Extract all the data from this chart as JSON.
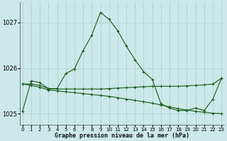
{
  "xlabel": "Graphe pression niveau de la mer (hPa)",
  "bg_color": "#cce8e8",
  "line_color": "#1a5c1a",
  "grid_color": "#aacece",
  "ylim": [
    1024.75,
    1027.45
  ],
  "xlim": [
    -0.3,
    23.3
  ],
  "yticks": [
    1025,
    1026,
    1027
  ],
  "xticks": [
    0,
    1,
    2,
    3,
    4,
    5,
    6,
    7,
    8,
    9,
    10,
    11,
    12,
    13,
    14,
    15,
    16,
    17,
    18,
    19,
    20,
    21,
    22,
    23
  ],
  "series": [
    {
      "x": [
        0,
        1,
        2,
        3,
        4,
        5,
        6,
        7,
        8,
        9,
        10,
        11,
        12,
        13,
        14,
        15,
        16,
        17,
        18,
        19,
        20,
        21,
        22,
        23
      ],
      "y": [
        1025.05,
        1025.72,
        1025.68,
        1025.55,
        1025.55,
        1025.88,
        1025.98,
        1026.38,
        1026.72,
        1027.22,
        1027.07,
        1026.82,
        1026.48,
        1026.18,
        1025.92,
        1025.75,
        1025.22,
        1025.12,
        1025.07,
        1025.07,
        1025.12,
        1025.07,
        1025.32,
        1025.78
      ]
    },
    {
      "x": [
        0,
        1,
        2,
        3,
        4,
        5,
        6,
        7,
        8,
        9,
        10,
        11,
        12,
        13,
        14,
        15,
        16,
        17,
        18,
        19,
        20,
        21,
        22,
        23
      ],
      "y": [
        1025.65,
        1025.62,
        1025.58,
        1025.52,
        1025.5,
        1025.48,
        1025.46,
        1025.44,
        1025.42,
        1025.4,
        1025.38,
        1025.35,
        1025.32,
        1025.29,
        1025.26,
        1025.23,
        1025.19,
        1025.15,
        1025.11,
        1025.08,
        1025.05,
        1025.03,
        1025.01,
        1025.0
      ]
    },
    {
      "x": [
        0,
        1,
        2,
        3,
        4,
        5,
        6,
        7,
        8,
        9,
        10,
        11,
        12,
        13,
        14,
        15,
        16,
        17,
        18,
        19,
        20,
        21,
        22,
        23
      ],
      "y": [
        1025.65,
        1025.65,
        1025.62,
        1025.55,
        1025.54,
        1025.54,
        1025.54,
        1025.54,
        1025.54,
        1025.54,
        1025.55,
        1025.56,
        1025.57,
        1025.58,
        1025.59,
        1025.6,
        1025.6,
        1025.6,
        1025.6,
        1025.61,
        1025.62,
        1025.63,
        1025.65,
        1025.78
      ]
    }
  ]
}
